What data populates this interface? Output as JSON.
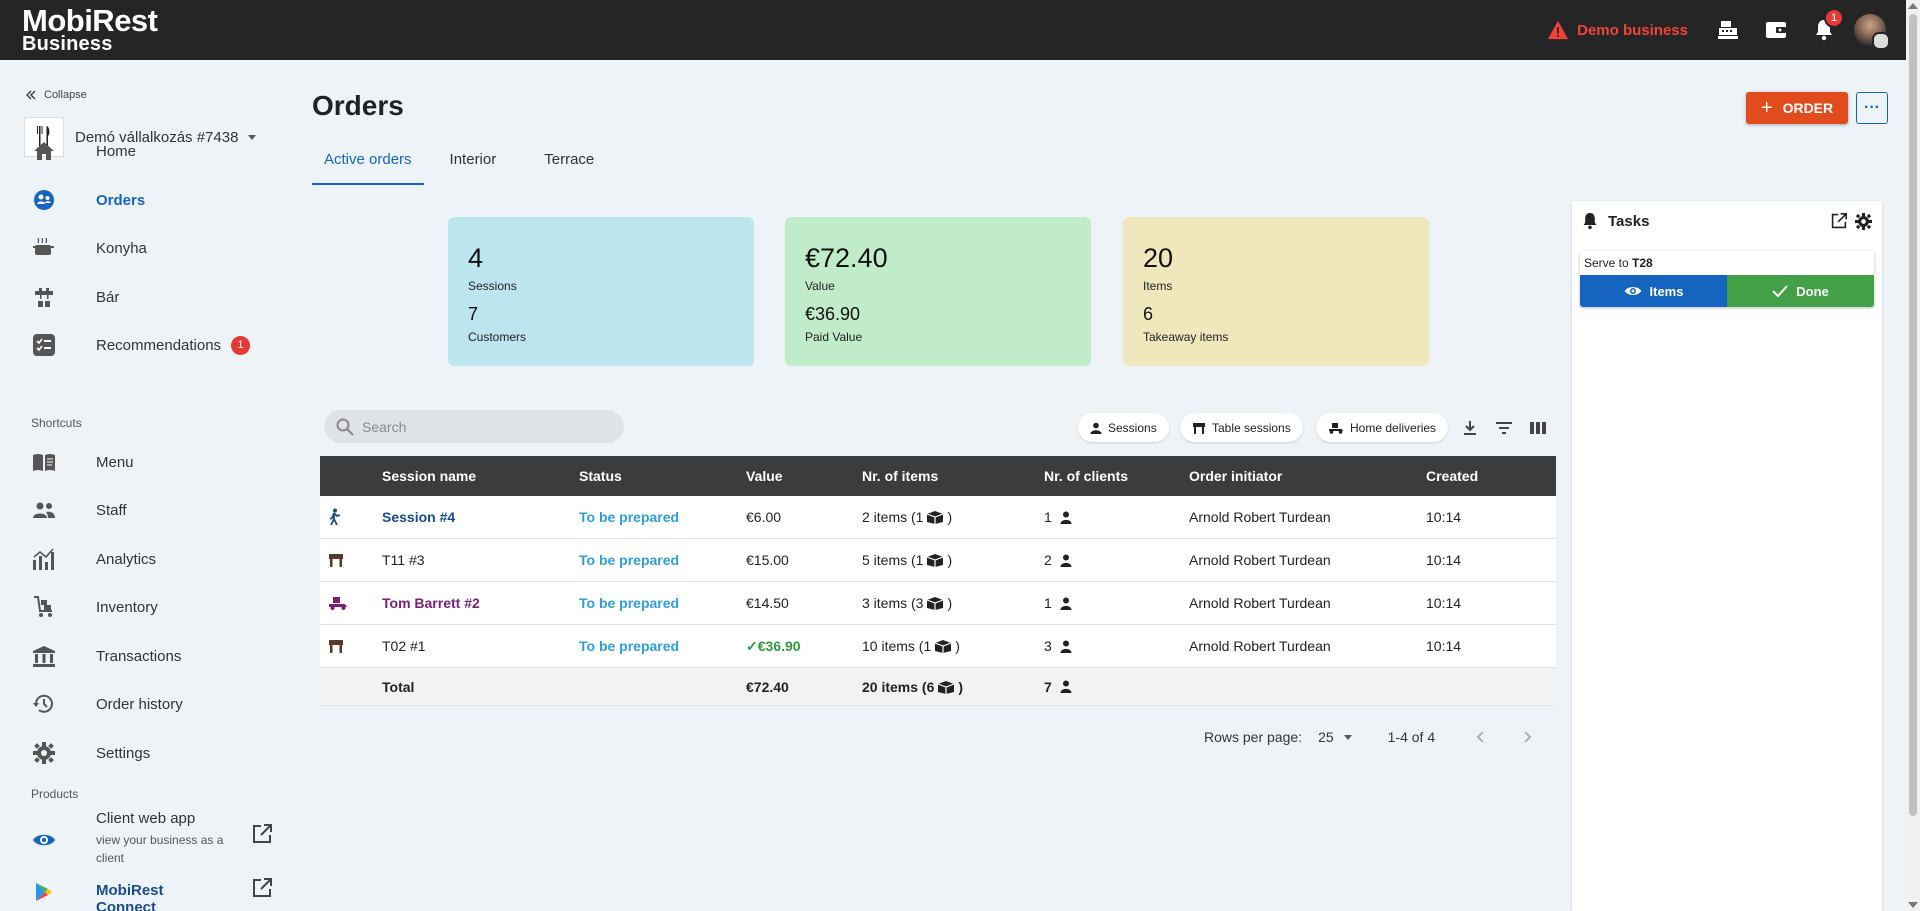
{
  "header": {
    "logo_line1": "MobiRest",
    "logo_line2": "Business",
    "demo_label": "Demo business",
    "notification_count": "1"
  },
  "sidebar": {
    "collapse_label": "Collapse",
    "business_name": "Demó vállalkozás #7438",
    "items": [
      {
        "label": "Home",
        "icon": "home-icon"
      },
      {
        "label": "Orders",
        "icon": "orders-icon",
        "active": true
      },
      {
        "label": "Konyha",
        "icon": "kitchen-pot-icon"
      },
      {
        "label": "Bár",
        "icon": "bar-tap-icon"
      },
      {
        "label": "Recommendations",
        "icon": "checklist-icon",
        "badge": "1"
      }
    ],
    "shortcuts_label": "Shortcuts",
    "shortcuts": [
      {
        "label": "Menu",
        "icon": "menu-book-icon"
      },
      {
        "label": "Staff",
        "icon": "people-icon"
      },
      {
        "label": "Analytics",
        "icon": "analytics-icon"
      },
      {
        "label": "Inventory",
        "icon": "inventory-cart-icon"
      },
      {
        "label": "Transactions",
        "icon": "bank-icon"
      },
      {
        "label": "Order history",
        "icon": "history-icon"
      },
      {
        "label": "Settings",
        "icon": "gear-icon"
      }
    ],
    "products_label": "Products",
    "products": [
      {
        "label": "Client web app",
        "sub": "view your business as a client",
        "icon": "eye-icon"
      },
      {
        "label": "MobiRest Connect",
        "icon": "play-store-icon"
      }
    ]
  },
  "main": {
    "title": "Orders",
    "order_button": "ORDER",
    "tabs": [
      "Active orders",
      "Interior",
      "Terrace"
    ],
    "stats": [
      {
        "big": "4",
        "big_label": "Sessions",
        "mid": "7",
        "mid_label": "Customers",
        "color": "#bde5ed"
      },
      {
        "big": "€72.40",
        "big_label": "Value",
        "mid": "€36.90",
        "mid_label": "Paid Value",
        "color": "#c0ecca"
      },
      {
        "big": "20",
        "big_label": "Items",
        "mid": "6",
        "mid_label": "Takeaway items",
        "color": "#f0e8bc"
      }
    ],
    "search_placeholder": "Search",
    "filters": [
      "Sessions",
      "Table sessions",
      "Home deliveries"
    ]
  },
  "table": {
    "columns": [
      "Session name",
      "Status",
      "Value",
      "Nr. of items",
      "Nr. of clients",
      "Order initiator",
      "Created"
    ],
    "rows": [
      {
        "type_icon": "walk-in-icon",
        "name": "Session #4",
        "name_style": "blue",
        "status": "To be prepared",
        "value": "€6.00",
        "items": "2 items (1",
        "clients": "1",
        "initiator": "Arnold Robert Turdean",
        "created": "10:14"
      },
      {
        "type_icon": "table-icon",
        "name": "T11 #3",
        "name_style": "plain",
        "status": "To be prepared",
        "value": "€15.00",
        "items": "5 items (1",
        "clients": "2",
        "initiator": "Arnold Robert Turdean",
        "created": "10:14"
      },
      {
        "type_icon": "delivery-scooter-icon",
        "name": "Tom Barrett #2",
        "name_style": "purple",
        "status": "To be prepared",
        "value": "€14.50",
        "items": "3 items (3",
        "clients": "1",
        "initiator": "Arnold Robert Turdean",
        "created": "10:14"
      },
      {
        "type_icon": "table-icon",
        "name": "T02 #1",
        "name_style": "plain",
        "status": "To be prepared",
        "value": "✓€36.90",
        "value_paid": true,
        "items": "10 items (1",
        "clients": "3",
        "initiator": "Arnold Robert Turdean",
        "created": "10:14"
      }
    ],
    "total": {
      "label": "Total",
      "value": "€72.40",
      "items": "20 items (6",
      "clients": "7"
    }
  },
  "pagination": {
    "rows_per_page_label": "Rows per page:",
    "rows_per_page": "25",
    "range": "1-4 of 4"
  },
  "tasks": {
    "title": "Tasks",
    "task_prefix": "Serve to",
    "task_target": "T28",
    "items_button": "Items",
    "done_button": "Done"
  }
}
